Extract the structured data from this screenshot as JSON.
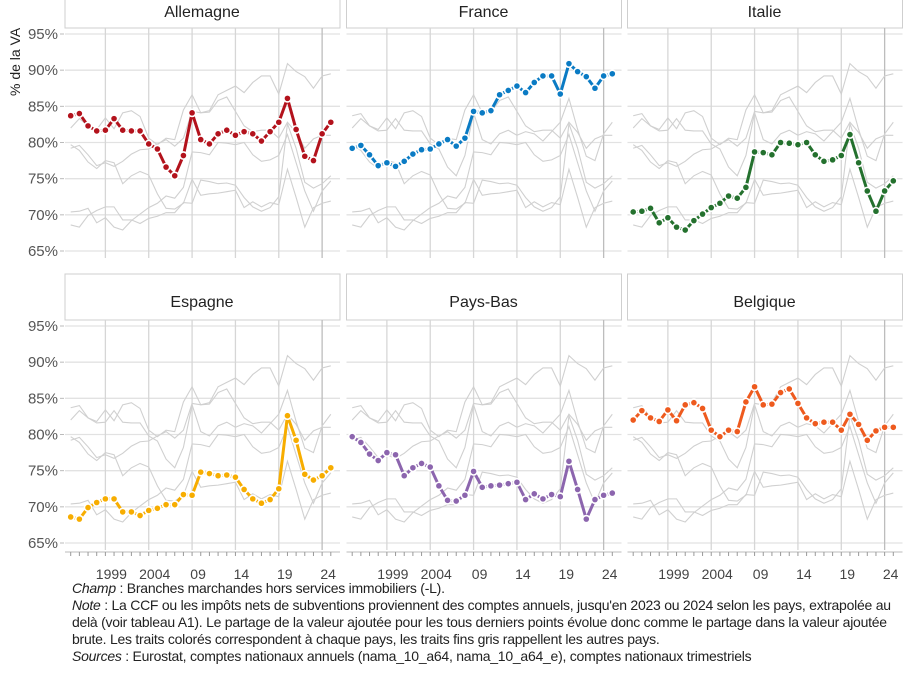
{
  "chart_data": {
    "type": "line",
    "ylabel": "% de la VA",
    "ylim": [
      65,
      95
    ],
    "yticks": [
      "95%",
      "90%",
      "85%",
      "80%",
      "75%",
      "70%",
      "65%"
    ],
    "ytick_values": [
      95,
      90,
      85,
      80,
      75,
      70,
      65
    ],
    "xlim": [
      1995,
      2025
    ],
    "xticks": [
      "1999",
      "2004",
      "09",
      "14",
      "19",
      "24"
    ],
    "xtick_values": [
      1999,
      2004,
      2009,
      2014,
      2019,
      2024
    ],
    "grid": true,
    "x": [
      1995,
      1996,
      1997,
      1998,
      1999,
      2000,
      2001,
      2002,
      2003,
      2004,
      2005,
      2006,
      2007,
      2008,
      2009,
      2010,
      2011,
      2012,
      2013,
      2014,
      2015,
      2016,
      2017,
      2018,
      2019,
      2020,
      2021,
      2022,
      2023,
      2024,
      2025
    ],
    "series": [
      {
        "name": "Allemagne",
        "color": "#b3121c",
        "values": [
          83.7,
          84.0,
          82.3,
          81.6,
          81.7,
          83.3,
          81.7,
          81.6,
          81.6,
          79.8,
          79.1,
          76.6,
          75.4,
          78.2,
          84.1,
          80.4,
          79.8,
          81.2,
          81.7,
          81.0,
          81.5,
          81.2,
          80.2,
          81.5,
          82.8,
          86.1,
          81.8,
          78.1,
          77.5,
          81.2,
          82.8
        ]
      },
      {
        "name": "France",
        "color": "#0a7bc4",
        "values": [
          79.2,
          79.6,
          78.3,
          76.8,
          77.2,
          76.7,
          77.4,
          78.4,
          79.0,
          79.1,
          79.8,
          80.4,
          79.5,
          80.6,
          84.3,
          84.1,
          84.4,
          86.6,
          87.2,
          87.8,
          86.9,
          88.3,
          89.2,
          89.2,
          86.7,
          90.9,
          89.8,
          89.1,
          87.5,
          89.2,
          89.5
        ]
      },
      {
        "name": "Italie",
        "color": "#24712e",
        "values": [
          70.4,
          70.5,
          70.9,
          68.9,
          69.6,
          68.3,
          67.9,
          69.2,
          70.1,
          71.0,
          71.6,
          72.6,
          72.3,
          73.8,
          78.7,
          78.6,
          78.3,
          80.0,
          79.9,
          79.7,
          80.0,
          78.3,
          77.4,
          77.6,
          78.2,
          81.1,
          77.2,
          73.3,
          70.5,
          73.3,
          74.7
        ]
      },
      {
        "name": "Espagne",
        "color": "#f7ad00",
        "values": [
          68.6,
          68.3,
          69.9,
          70.6,
          71.1,
          71.1,
          69.3,
          69.3,
          68.8,
          69.5,
          69.8,
          70.3,
          70.3,
          71.7,
          71.6,
          74.8,
          74.6,
          74.3,
          74.4,
          74.1,
          72.4,
          71.1,
          70.5,
          71.0,
          72.5,
          82.6,
          79.2,
          74.5,
          73.7,
          74.3,
          75.4
        ]
      },
      {
        "name": "Pays-Bas",
        "color": "#8c65ae",
        "values": [
          79.7,
          78.9,
          77.3,
          76.4,
          77.5,
          77.2,
          74.3,
          75.4,
          76.0,
          75.5,
          72.9,
          70.9,
          70.8,
          71.6,
          74.9,
          72.7,
          72.9,
          73.0,
          73.2,
          73.4,
          71.0,
          71.8,
          71.1,
          71.7,
          71.4,
          76.3,
          72.4,
          68.3,
          71.0,
          71.6,
          71.9
        ]
      },
      {
        "name": "Belgique",
        "color": "#ee5a1e",
        "values": [
          82.0,
          83.3,
          82.3,
          81.8,
          83.4,
          81.9,
          84.1,
          84.4,
          83.6,
          80.6,
          79.7,
          80.6,
          80.4,
          84.5,
          86.6,
          84.1,
          84.2,
          85.8,
          86.3,
          84.3,
          82.3,
          81.5,
          81.7,
          81.7,
          80.6,
          82.8,
          81.4,
          79.2,
          80.5,
          81.0,
          81.0
        ]
      }
    ],
    "gray_color": "#d0d0d0"
  },
  "notes": {
    "champ_label": "Champ",
    "champ_text": " : Branches marchandes hors services immobiliers (-L).",
    "note_label": "Note",
    "note_text": " : La CCF ou les impôts nets de subventions proviennent des comptes annuels, jusqu'en 2023 ou 2024 selon les pays, extrapolée au delà (voir tableau A1). Le partage de la valeur ajoutée pour les tous derniers points évolue donc comme le partage dans la valeur ajoutée brute. Les traits colorés correspondent à chaque pays, les traits fins gris rappellent les autres pays.",
    "sources_label": "Sources",
    "sources_text": " : Eurostat, comptes nationaux annuels (nama_10_a64, nama_10_a64_e), comptes nationaux trimestriels"
  }
}
